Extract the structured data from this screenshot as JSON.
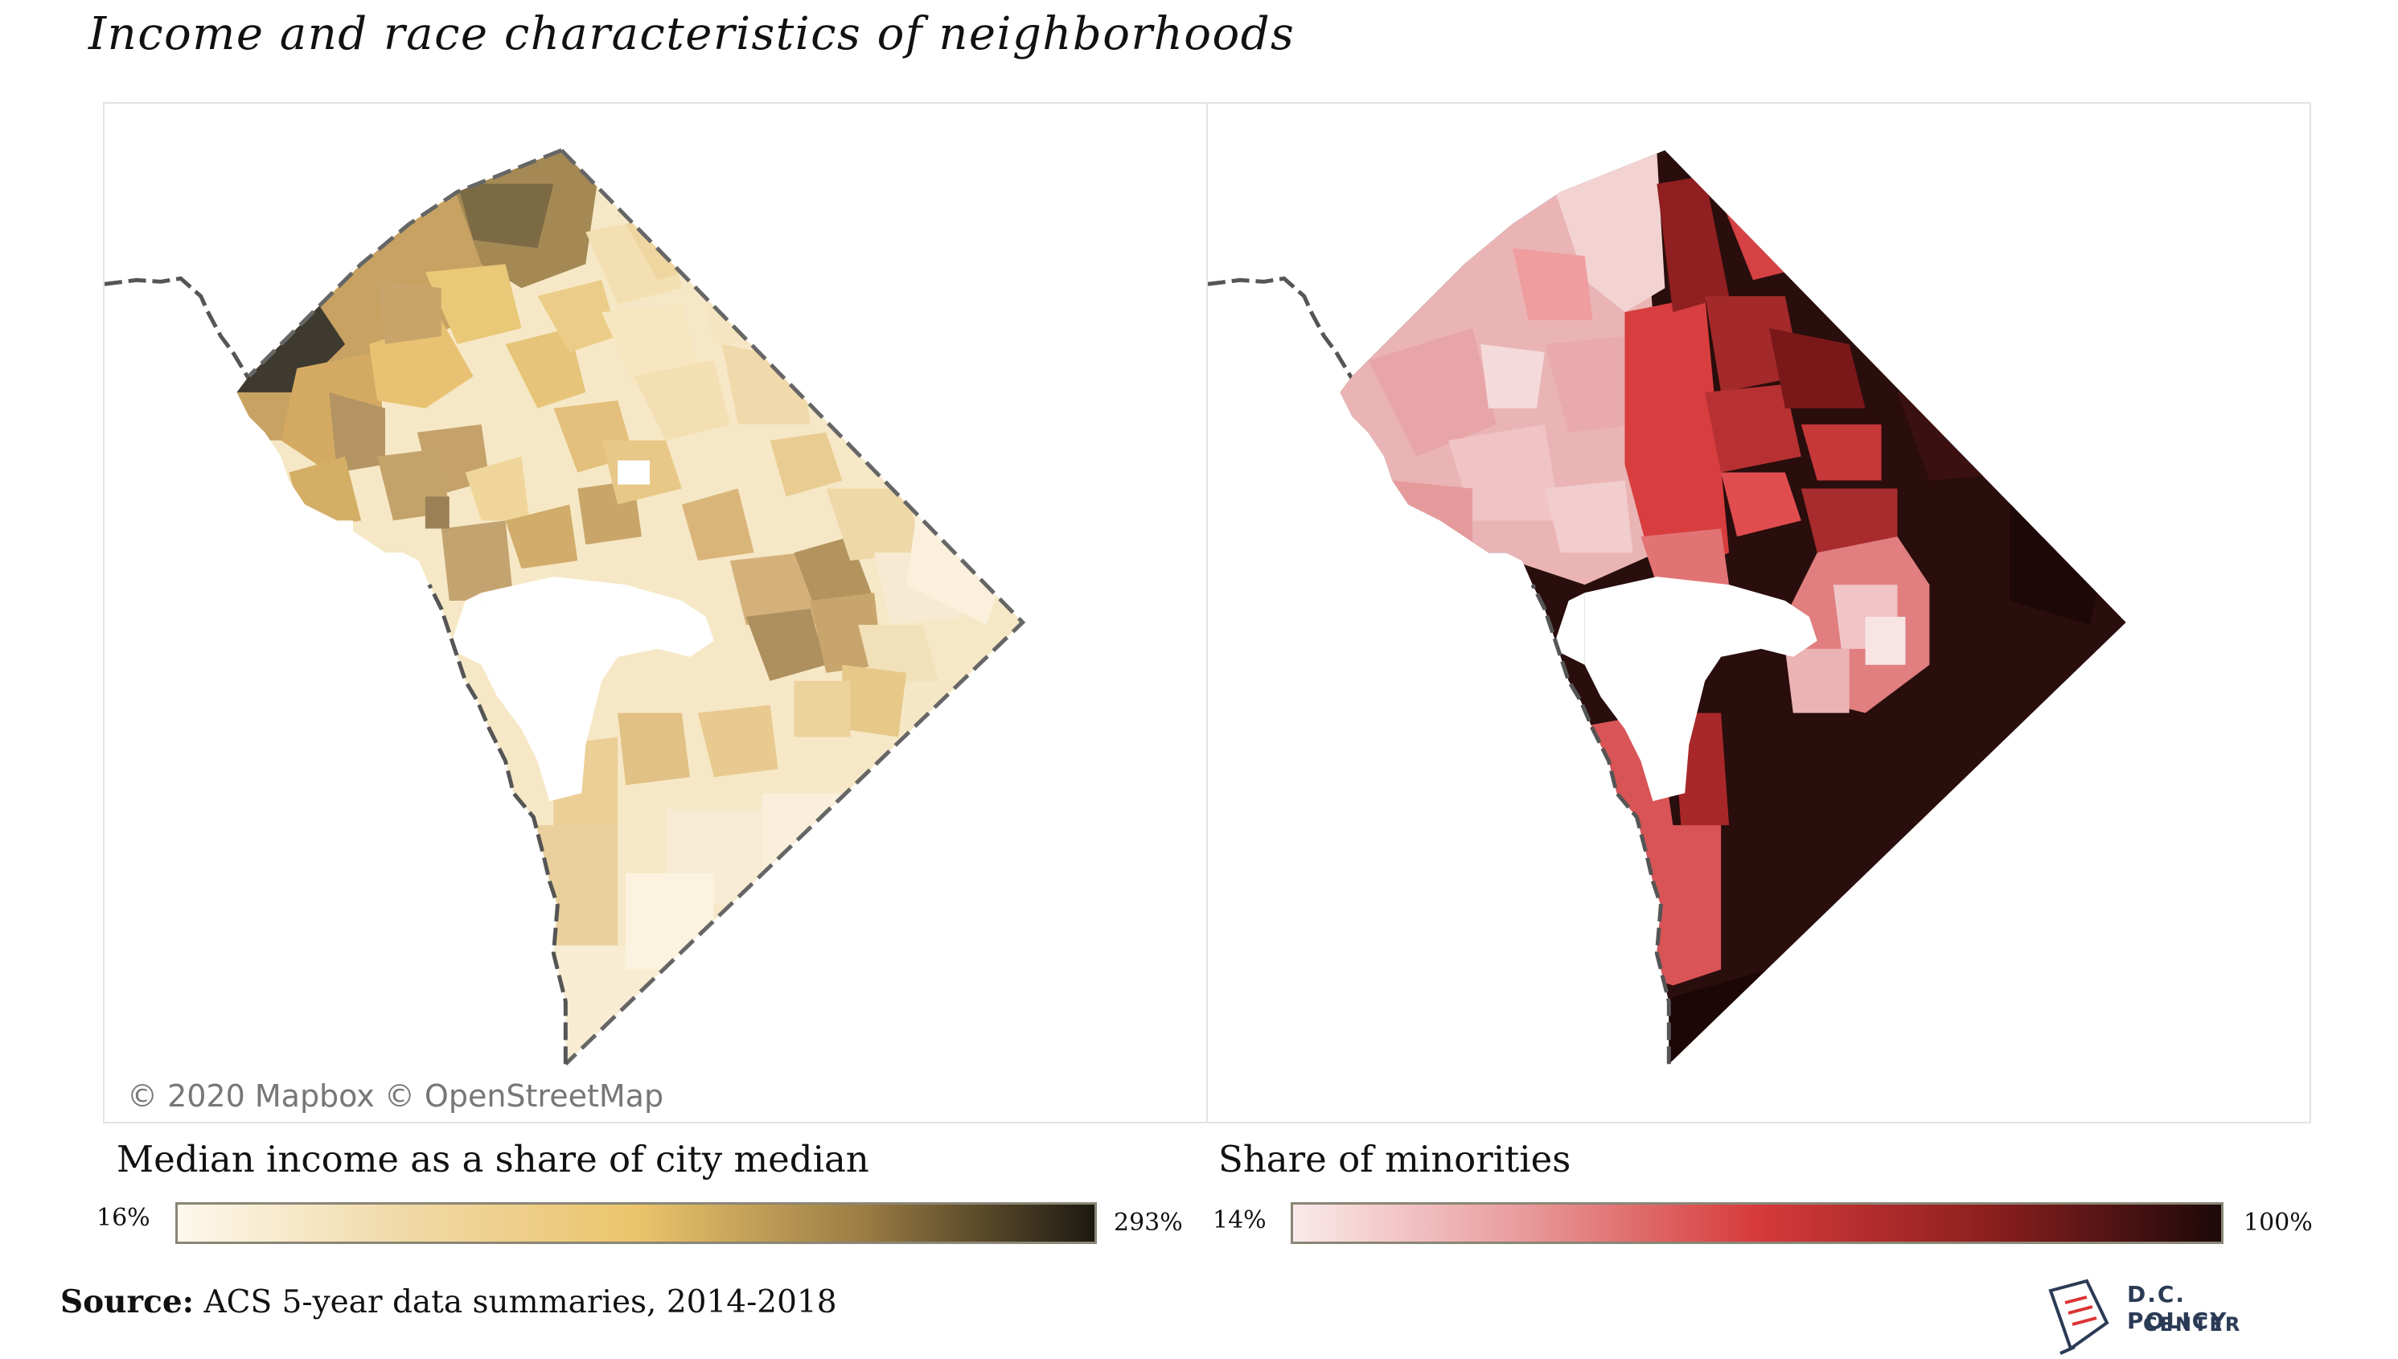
{
  "title": "Income and race characteristics of neighborhoods",
  "attribution": "© 2020 Mapbox © OpenStreetMap",
  "panels": [
    {
      "legend_title": "Median income as a share of city median",
      "min_label": "16%",
      "max_label": "293%",
      "gradient": [
        "#fdf8ec",
        "#f0d9a6",
        "#ebc46c",
        "#9a7c44",
        "#1c1911"
      ]
    },
    {
      "legend_title": "Share of minorities",
      "min_label": "14%",
      "max_label": "100%",
      "gradient": [
        "#faeaea",
        "#e89a9b",
        "#d73a3a",
        "#8c1f1f",
        "#1d0909"
      ]
    }
  ],
  "source": {
    "label": "Source:",
    "text": "ACS 5-year data summaries, 2014-2018"
  },
  "logo": {
    "line1": "D.C. POLICY",
    "line2": "CENTER"
  }
}
